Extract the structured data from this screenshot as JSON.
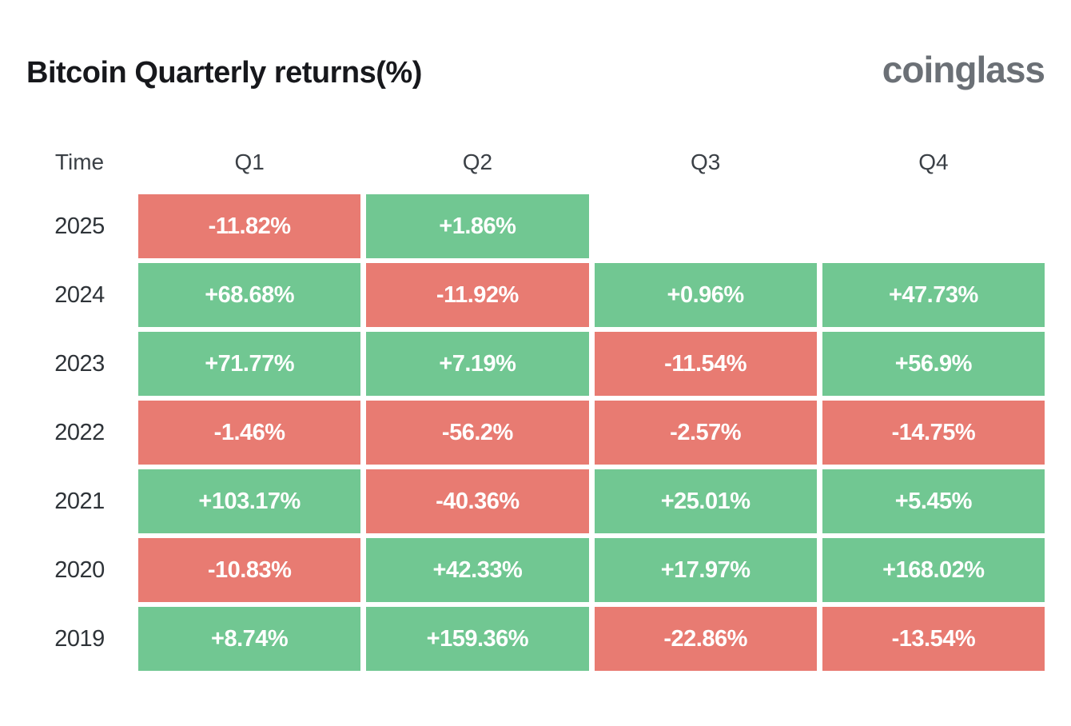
{
  "header": {
    "title": "Bitcoin Quarterly returns(%)",
    "brand": "coinglass"
  },
  "colors": {
    "positive": "#71C792",
    "negative": "#E87B72",
    "cell_text": "#FFFFFF",
    "title_text": "#17181C",
    "header_text": "#3B4046",
    "year_text": "#2E3338",
    "brand_text": "#6B7076",
    "background": "#FFFFFF"
  },
  "chart_data": {
    "type": "heatmap",
    "title": "Bitcoin Quarterly returns(%)",
    "columns": [
      "Time",
      "Q1",
      "Q2",
      "Q3",
      "Q4"
    ],
    "legend": {
      "positive_color_meaning": "positive quarterly return",
      "negative_color_meaning": "negative quarterly return"
    },
    "rows": [
      {
        "year": "2025",
        "values": [
          "-11.82%",
          "+1.86%",
          null,
          null
        ]
      },
      {
        "year": "2024",
        "values": [
          "+68.68%",
          "-11.92%",
          "+0.96%",
          "+47.73%"
        ]
      },
      {
        "year": "2023",
        "values": [
          "+71.77%",
          "+7.19%",
          "-11.54%",
          "+56.9%"
        ]
      },
      {
        "year": "2022",
        "values": [
          "-1.46%",
          "-56.2%",
          "-2.57%",
          "-14.75%"
        ]
      },
      {
        "year": "2021",
        "values": [
          "+103.17%",
          "-40.36%",
          "+25.01%",
          "+5.45%"
        ]
      },
      {
        "year": "2020",
        "values": [
          "-10.83%",
          "+42.33%",
          "+17.97%",
          "+168.02%"
        ]
      },
      {
        "year": "2019",
        "values": [
          "+8.74%",
          "+159.36%",
          "-22.86%",
          "-13.54%"
        ]
      }
    ]
  }
}
